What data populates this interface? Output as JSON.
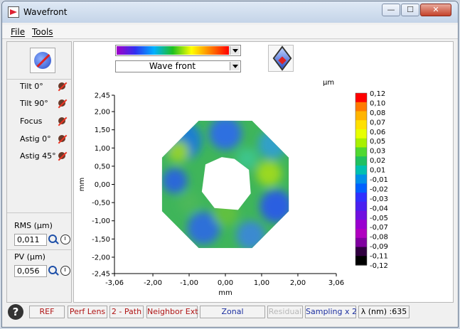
{
  "window": {
    "title": "Wavefront",
    "buttons": {
      "minimize": "—",
      "maximize": "☐",
      "close": "✕"
    }
  },
  "menu": {
    "file": "File",
    "tools": "Tools"
  },
  "zernike": {
    "items": [
      {
        "label": "Tilt 0°"
      },
      {
        "label": "Tilt 90°"
      },
      {
        "label": "Focus"
      },
      {
        "label": "Astig 0°"
      },
      {
        "label": "Astig 45°"
      }
    ]
  },
  "stats": {
    "rms_label": "RMS (µm)",
    "rms_value": "0,011",
    "pv_label": "PV (µm)",
    "pv_value": "0,056"
  },
  "view": {
    "selected": "Wave front"
  },
  "chart_data": {
    "type": "heatmap",
    "xlabel": "mm",
    "ylabel": "mm",
    "x_ticks": [
      "-3,06",
      "-2,00",
      "-1,00",
      "0,00",
      "1,00",
      "2,00",
      "3,06"
    ],
    "x_tick_values": [
      -3.06,
      -2.0,
      -1.0,
      0.0,
      1.0,
      2.0,
      3.06
    ],
    "y_ticks": [
      "2,45",
      "2,00",
      "1,50",
      "1,00",
      "0,50",
      "0,00",
      "-0,50",
      "-1,00",
      "-1,50",
      "-2,00",
      "-2,45"
    ],
    "y_tick_values": [
      2.45,
      2.0,
      1.5,
      1.0,
      0.5,
      0.0,
      -0.5,
      -1.0,
      -1.5,
      -2.0,
      -2.45
    ],
    "xlim": [
      -3.06,
      3.06
    ],
    "ylim": [
      -2.45,
      2.45
    ],
    "colorbar": {
      "unit": "µm",
      "labels": [
        "0,12",
        "0,10",
        "0,08",
        "0,07",
        "0,06",
        "0,05",
        "0,03",
        "0,02",
        "0,01",
        "-0,01",
        "-0,02",
        "-0,03",
        "-0,04",
        "-0,05",
        "-0,07",
        "-0,08",
        "-0,09",
        "-0,11",
        "-0,12"
      ],
      "colors": [
        "#ff0000",
        "#ff7a00",
        "#ffb400",
        "#ffe000",
        "#e8ff00",
        "#a8f000",
        "#50d830",
        "#20c060",
        "#00c0b0",
        "#0090e8",
        "#0060ff",
        "#3030ff",
        "#4a20f0",
        "#7010e0",
        "#9a00d0",
        "#b000c0",
        "#8000a0",
        "#300040",
        "#000000"
      ]
    },
    "aperture": {
      "shape": "octagon",
      "outer_half_width_mm": 1.75,
      "outer_half_height_mm": 1.75,
      "inner_hole": "central",
      "value_range_um": [
        -0.03,
        0.03
      ]
    }
  },
  "statusbar": {
    "help": "?",
    "ref": "REF",
    "perf_lens": "Perf Lens",
    "path": "2 - Path",
    "neighbor": "Neighbor Ext",
    "zonal": "Zonal",
    "residual": "Residual",
    "sampling": "Sampling x 2",
    "lambda": "λ (nm) :635"
  }
}
